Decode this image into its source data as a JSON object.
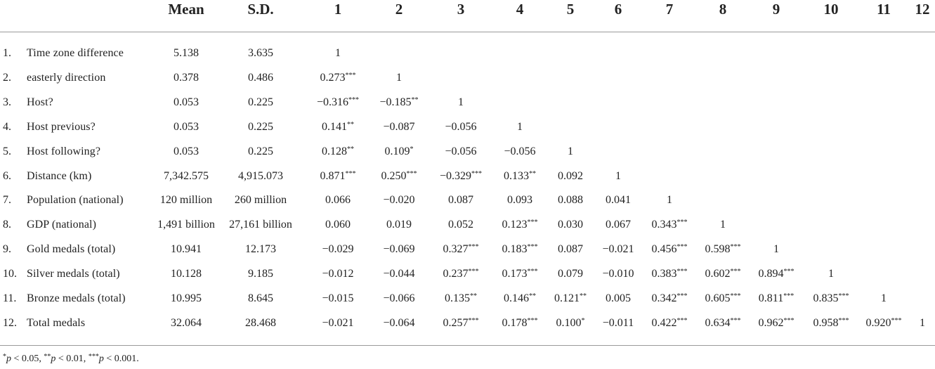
{
  "table": {
    "headers": [
      "Mean",
      "S.D.",
      "1",
      "2",
      "3",
      "4",
      "5",
      "6",
      "7",
      "8",
      "9",
      "10",
      "11",
      "12"
    ],
    "rows": [
      {
        "num": "1.",
        "label": "Time zone difference",
        "mean": "5.138",
        "sd": "3.635",
        "cells": [
          {
            "v": "1",
            "s": ""
          }
        ]
      },
      {
        "num": "2.",
        "label": "easterly direction",
        "mean": "0.378",
        "sd": "0.486",
        "cells": [
          {
            "v": "0.273",
            "s": "***"
          },
          {
            "v": "1",
            "s": ""
          }
        ]
      },
      {
        "num": "3.",
        "label": "Host?",
        "mean": "0.053",
        "sd": "0.225",
        "cells": [
          {
            "v": "−0.316",
            "s": "***"
          },
          {
            "v": "−0.185",
            "s": "**"
          },
          {
            "v": "1",
            "s": ""
          }
        ]
      },
      {
        "num": "4.",
        "label": "Host previous?",
        "mean": "0.053",
        "sd": "0.225",
        "cells": [
          {
            "v": "0.141",
            "s": "**"
          },
          {
            "v": "−0.087",
            "s": ""
          },
          {
            "v": "−0.056",
            "s": ""
          },
          {
            "v": "1",
            "s": ""
          }
        ]
      },
      {
        "num": "5.",
        "label": "Host following?",
        "mean": "0.053",
        "sd": "0.225",
        "cells": [
          {
            "v": "0.128",
            "s": "**"
          },
          {
            "v": "0.109",
            "s": "*"
          },
          {
            "v": "−0.056",
            "s": ""
          },
          {
            "v": "−0.056",
            "s": ""
          },
          {
            "v": "1",
            "s": ""
          }
        ]
      },
      {
        "num": "6.",
        "label": "Distance (km)",
        "mean": "7,342.575",
        "sd": "4,915.073",
        "cells": [
          {
            "v": "0.871",
            "s": "***"
          },
          {
            "v": "0.250",
            "s": "***"
          },
          {
            "v": "−0.329",
            "s": "***"
          },
          {
            "v": "0.133",
            "s": "**"
          },
          {
            "v": "0.092",
            "s": ""
          },
          {
            "v": "1",
            "s": ""
          }
        ]
      },
      {
        "num": "7.",
        "label": "Population (national)",
        "mean": "120 million",
        "sd": "260 million",
        "cells": [
          {
            "v": "0.066",
            "s": ""
          },
          {
            "v": "−0.020",
            "s": ""
          },
          {
            "v": "0.087",
            "s": ""
          },
          {
            "v": "0.093",
            "s": ""
          },
          {
            "v": "0.088",
            "s": ""
          },
          {
            "v": "0.041",
            "s": ""
          },
          {
            "v": "1",
            "s": ""
          }
        ]
      },
      {
        "num": "8.",
        "label": "GDP (national)",
        "mean": "1,491 billion",
        "sd": "27,161 billion",
        "cells": [
          {
            "v": "0.060",
            "s": ""
          },
          {
            "v": "0.019",
            "s": ""
          },
          {
            "v": "0.052",
            "s": ""
          },
          {
            "v": "0.123",
            "s": "***"
          },
          {
            "v": "0.030",
            "s": ""
          },
          {
            "v": "0.067",
            "s": ""
          },
          {
            "v": "0.343",
            "s": "***"
          },
          {
            "v": "1",
            "s": ""
          }
        ]
      },
      {
        "num": "9.",
        "label": "Gold medals (total)",
        "mean": "10.941",
        "sd": "12.173",
        "cells": [
          {
            "v": "−0.029",
            "s": ""
          },
          {
            "v": "−0.069",
            "s": ""
          },
          {
            "v": "0.327",
            "s": "***"
          },
          {
            "v": "0.183",
            "s": "***"
          },
          {
            "v": "0.087",
            "s": ""
          },
          {
            "v": "−0.021",
            "s": ""
          },
          {
            "v": "0.456",
            "s": "***"
          },
          {
            "v": "0.598",
            "s": "***"
          },
          {
            "v": "1",
            "s": ""
          }
        ]
      },
      {
        "num": "10.",
        "label": "Silver medals (total)",
        "mean": "10.128",
        "sd": "9.185",
        "cells": [
          {
            "v": "−0.012",
            "s": ""
          },
          {
            "v": "−0.044",
            "s": ""
          },
          {
            "v": "0.237",
            "s": "***"
          },
          {
            "v": "0.173",
            "s": "***"
          },
          {
            "v": "0.079",
            "s": ""
          },
          {
            "v": "−0.010",
            "s": ""
          },
          {
            "v": "0.383",
            "s": "***"
          },
          {
            "v": "0.602",
            "s": "***"
          },
          {
            "v": "0.894",
            "s": "***"
          },
          {
            "v": "1",
            "s": ""
          }
        ]
      },
      {
        "num": "11.",
        "label": "Bronze medals (total)",
        "mean": "10.995",
        "sd": "8.645",
        "cells": [
          {
            "v": "−0.015",
            "s": ""
          },
          {
            "v": "−0.066",
            "s": ""
          },
          {
            "v": "0.135",
            "s": "**"
          },
          {
            "v": "0.146",
            "s": "**"
          },
          {
            "v": "0.121",
            "s": "**"
          },
          {
            "v": "0.005",
            "s": ""
          },
          {
            "v": "0.342",
            "s": "***"
          },
          {
            "v": "0.605",
            "s": "***"
          },
          {
            "v": "0.811",
            "s": "***"
          },
          {
            "v": "0.835",
            "s": "***"
          },
          {
            "v": "1",
            "s": ""
          }
        ]
      },
      {
        "num": "12.",
        "label": "Total medals",
        "mean": "32.064",
        "sd": "28.468",
        "cells": [
          {
            "v": "−0.021",
            "s": ""
          },
          {
            "v": "−0.064",
            "s": ""
          },
          {
            "v": "0.257",
            "s": "***"
          },
          {
            "v": "0.178",
            "s": "***"
          },
          {
            "v": "0.100",
            "s": "*"
          },
          {
            "v": "−0.011",
            "s": ""
          },
          {
            "v": "0.422",
            "s": "***"
          },
          {
            "v": "0.634",
            "s": "***"
          },
          {
            "v": "0.962",
            "s": "***"
          },
          {
            "v": "0.958",
            "s": "***"
          },
          {
            "v": "0.920",
            "s": "***"
          },
          {
            "v": "1",
            "s": ""
          }
        ]
      }
    ]
  },
  "footnote": {
    "parts": [
      {
        "sup": "*",
        "p": "p",
        "text": " < 0.05, "
      },
      {
        "sup": "**",
        "p": "p",
        "text": " < 0.01, "
      },
      {
        "sup": "***",
        "p": "p",
        "text": " < 0.001."
      }
    ]
  }
}
